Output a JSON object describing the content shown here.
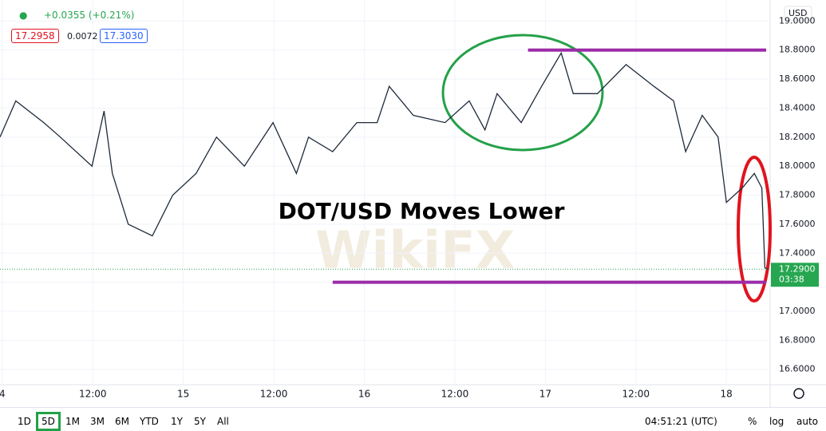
{
  "header": {
    "change": "+0.0355 (+0.21%)",
    "bid": "17.2958",
    "spread": "0.0072",
    "ask": "17.3030"
  },
  "watermark": "WikiFX",
  "chart_data": {
    "type": "line",
    "title": "DOT/USD Moves Lower",
    "currency": "USD",
    "color": "#1e2a3a",
    "x": [
      -0.3,
      1.8,
      5.5,
      7.7,
      11.9,
      13.5,
      14.6,
      16.7,
      19.9,
      22.6,
      25.7,
      28.4,
      32.1,
      35.9,
      39.0,
      40.6,
      43.8,
      47.0,
      49.7,
      51.3,
      54.5,
      58.7,
      61.9,
      64.0,
      65.6,
      68.8,
      71.5,
      74.1,
      75.7,
      78.9,
      82.7,
      86.4,
      89.0,
      90.6,
      92.8,
      94.9,
      96.0,
      98.1,
      99.7,
      100.7,
      101.1,
      101.5
    ],
    "values": [
      18.2,
      18.45,
      18.3,
      18.2,
      18.0,
      18.38,
      17.95,
      17.6,
      17.52,
      17.8,
      17.95,
      18.2,
      18.0,
      18.3,
      17.95,
      18.2,
      18.1,
      18.3,
      18.3,
      18.55,
      18.35,
      18.3,
      18.45,
      18.25,
      18.5,
      18.3,
      18.55,
      18.78,
      18.5,
      18.5,
      18.7,
      18.55,
      18.45,
      18.1,
      18.35,
      18.2,
      17.75,
      17.85,
      17.95,
      17.85,
      17.3,
      17.29
    ],
    "xlim": [
      -0.3,
      101.8
    ],
    "xticks": [
      {
        "value": 0,
        "label": "4"
      },
      {
        "value": 12,
        "label": "12:00"
      },
      {
        "value": 24,
        "label": "15"
      },
      {
        "value": 36,
        "label": "12:00"
      },
      {
        "value": 48,
        "label": "16"
      },
      {
        "value": 60,
        "label": "12:00"
      },
      {
        "value": 72,
        "label": "17"
      },
      {
        "value": 84,
        "label": "12:00"
      },
      {
        "value": 96,
        "label": "18"
      }
    ],
    "ylim": [
      16.494,
      19.145
    ],
    "yticks": [
      {
        "value": 16.6,
        "label": "16.6000"
      },
      {
        "value": 16.8,
        "label": "16.8000"
      },
      {
        "value": 17.0,
        "label": "17.0000"
      },
      {
        "value": 17.2,
        "label": "17.2000"
      },
      {
        "value": 17.4,
        "label": "17.4000"
      },
      {
        "value": 17.6,
        "label": "17.6000"
      },
      {
        "value": 17.8,
        "label": "17.8000"
      },
      {
        "value": 18.0,
        "label": "18.0000"
      },
      {
        "value": 18.2,
        "label": "18.2000"
      },
      {
        "value": 18.4,
        "label": "18.4000"
      },
      {
        "value": 18.6,
        "label": "18.6000"
      },
      {
        "value": 18.8,
        "label": "18.8000"
      },
      {
        "value": 19.0,
        "label": "19.0000"
      }
    ],
    "grid": true,
    "last_price": {
      "value": 17.29,
      "label": "17.2900",
      "countdown": "03:38",
      "color": "#26a650"
    },
    "levels": [
      {
        "value": 18.8,
        "from": 69.7
      },
      {
        "value": 17.2,
        "from": 43.8
      }
    ],
    "level_color": "#9c2ba8"
  },
  "toolbar": {
    "ranges": [
      "1D",
      "5D",
      "1M",
      "3M",
      "6M",
      "YTD",
      "1Y",
      "5Y",
      "All"
    ],
    "active": 1,
    "clock": "04:51:21 (UTC)",
    "options": [
      "%",
      "log",
      "auto"
    ]
  }
}
